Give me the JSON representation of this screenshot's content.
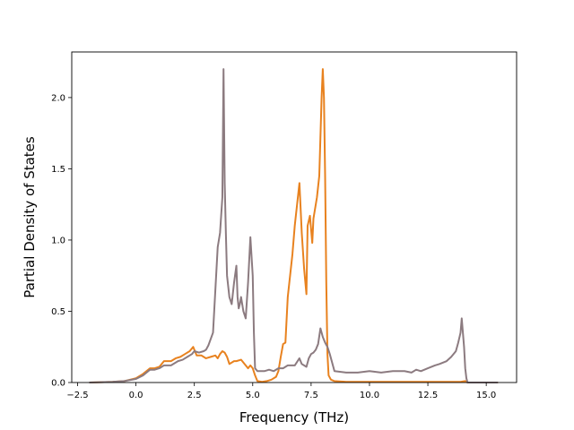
{
  "chart_data": {
    "type": "line",
    "title": "",
    "xlabel": "Frequency (THz)",
    "ylabel": "Partial Density of States",
    "xlim": [
      -2.75,
      16.3
    ],
    "ylim": [
      0,
      2.32
    ],
    "x_ticks": [
      -2.5,
      0.0,
      2.5,
      5.0,
      7.5,
      10.0,
      12.5,
      15.0
    ],
    "x_tick_labels": [
      "−2.5",
      "0.0",
      "2.5",
      "5.0",
      "7.5",
      "10.0",
      "12.5",
      "15.0"
    ],
    "y_ticks": [
      0.0,
      0.5,
      1.0,
      1.5,
      2.0
    ],
    "y_tick_labels": [
      "0.0",
      "0.5",
      "1.0",
      "1.5",
      "2.0"
    ],
    "grid": false,
    "legend": "none",
    "series": [
      {
        "color": "#e8821f",
        "x": [
          -2.0,
          -1.0,
          -0.5,
          0.0,
          0.3,
          0.6,
          0.8,
          1.0,
          1.2,
          1.5,
          1.7,
          1.9,
          2.1,
          2.3,
          2.45,
          2.6,
          2.8,
          3.0,
          3.2,
          3.4,
          3.5,
          3.6,
          3.7,
          3.8,
          3.9,
          4.0,
          4.1,
          4.2,
          4.3,
          4.5,
          4.7,
          4.8,
          4.9,
          5.0,
          5.1,
          5.2,
          5.4,
          5.6,
          5.8,
          6.0,
          6.1,
          6.2,
          6.3,
          6.4,
          6.5,
          6.6,
          6.7,
          6.8,
          6.9,
          7.0,
          7.1,
          7.2,
          7.3,
          7.35,
          7.45,
          7.55,
          7.6,
          7.65,
          7.75,
          7.85,
          7.95,
          8.0,
          8.05,
          8.1,
          8.15,
          8.2,
          8.25,
          8.35,
          8.5,
          9.0,
          10.0,
          11.0,
          12.0,
          13.0,
          13.5,
          13.9,
          14.1,
          14.2,
          15.5
        ],
        "y": [
          0.0,
          0.005,
          0.01,
          0.03,
          0.06,
          0.1,
          0.1,
          0.11,
          0.15,
          0.15,
          0.17,
          0.18,
          0.2,
          0.22,
          0.25,
          0.19,
          0.19,
          0.17,
          0.18,
          0.19,
          0.17,
          0.2,
          0.22,
          0.21,
          0.18,
          0.13,
          0.14,
          0.15,
          0.15,
          0.16,
          0.12,
          0.1,
          0.12,
          0.1,
          0.05,
          0.01,
          0.005,
          0.01,
          0.02,
          0.04,
          0.08,
          0.18,
          0.27,
          0.28,
          0.6,
          0.75,
          0.9,
          1.1,
          1.25,
          1.4,
          1.05,
          0.8,
          0.62,
          1.1,
          1.17,
          0.98,
          1.15,
          1.2,
          1.3,
          1.45,
          2.0,
          2.2,
          2.0,
          1.45,
          0.7,
          0.2,
          0.05,
          0.02,
          0.01,
          0.005,
          0.005,
          0.005,
          0.005,
          0.005,
          0.005,
          0.005,
          0.01,
          0.0,
          0.0
        ]
      },
      {
        "color": "#8c7b80",
        "x": [
          -2.0,
          -1.0,
          -0.5,
          0.0,
          0.3,
          0.6,
          0.8,
          1.0,
          1.2,
          1.5,
          1.8,
          2.0,
          2.2,
          2.4,
          2.5,
          2.7,
          2.9,
          3.0,
          3.1,
          3.3,
          3.5,
          3.6,
          3.7,
          3.75,
          3.8,
          3.85,
          3.9,
          4.0,
          4.1,
          4.2,
          4.3,
          4.35,
          4.4,
          4.45,
          4.5,
          4.6,
          4.7,
          4.8,
          4.9,
          5.0,
          5.05,
          5.1,
          5.2,
          5.3,
          5.5,
          5.7,
          5.9,
          6.1,
          6.3,
          6.5,
          6.8,
          7.0,
          7.1,
          7.2,
          7.3,
          7.4,
          7.5,
          7.6,
          7.7,
          7.8,
          7.9,
          8.0,
          8.1,
          8.2,
          8.3,
          8.5,
          9.0,
          9.5,
          10.0,
          10.5,
          11.0,
          11.5,
          11.8,
          12.0,
          12.2,
          12.5,
          12.8,
          13.0,
          13.3,
          13.5,
          13.7,
          13.8,
          13.9,
          13.95,
          14.0,
          14.05,
          14.1,
          14.15,
          14.2,
          15.5
        ],
        "y": [
          0.0,
          0.005,
          0.01,
          0.025,
          0.05,
          0.09,
          0.09,
          0.1,
          0.12,
          0.12,
          0.15,
          0.16,
          0.18,
          0.2,
          0.22,
          0.21,
          0.22,
          0.23,
          0.26,
          0.35,
          0.95,
          1.05,
          1.3,
          2.2,
          1.4,
          1.05,
          0.75,
          0.6,
          0.55,
          0.7,
          0.82,
          0.6,
          0.52,
          0.55,
          0.6,
          0.5,
          0.45,
          0.7,
          1.02,
          0.75,
          0.35,
          0.1,
          0.08,
          0.08,
          0.08,
          0.09,
          0.08,
          0.1,
          0.1,
          0.12,
          0.12,
          0.17,
          0.13,
          0.12,
          0.11,
          0.17,
          0.2,
          0.21,
          0.23,
          0.27,
          0.38,
          0.32,
          0.28,
          0.25,
          0.2,
          0.08,
          0.07,
          0.07,
          0.08,
          0.07,
          0.08,
          0.08,
          0.07,
          0.09,
          0.08,
          0.1,
          0.12,
          0.13,
          0.15,
          0.18,
          0.22,
          0.28,
          0.35,
          0.45,
          0.35,
          0.25,
          0.1,
          0.03,
          0.0,
          0.0
        ]
      }
    ]
  }
}
